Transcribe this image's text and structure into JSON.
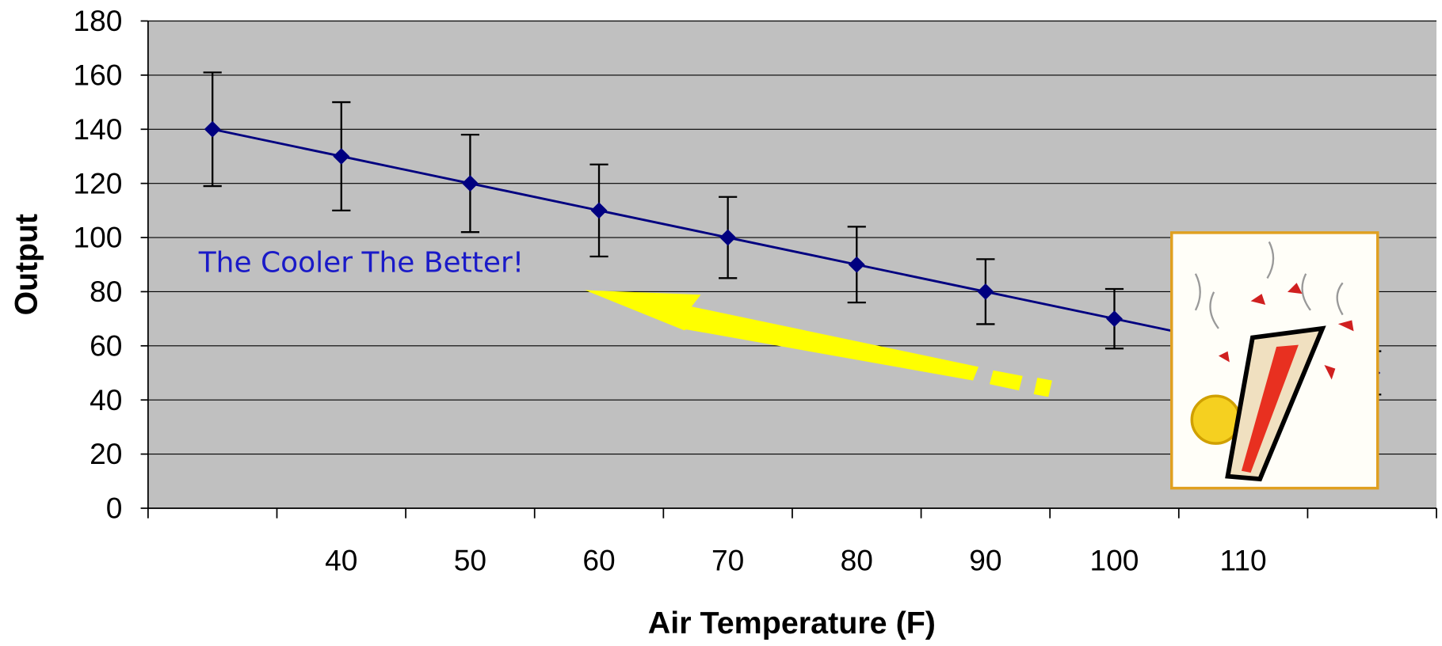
{
  "chart_data": {
    "type": "line",
    "y_label": "Output",
    "x_label": "Air Temperature (F)",
    "annotation": "The Cooler The Better!",
    "categories": [
      null,
      "40",
      "50",
      "60",
      "70",
      "80",
      "90",
      "100",
      "110",
      null
    ],
    "series": [
      {
        "color": "#000080",
        "values": [
          140,
          130,
          120,
          110,
          100,
          90,
          80,
          70,
          60,
          50
        ],
        "errors": [
          21,
          20,
          18,
          17,
          15,
          14,
          12,
          11,
          10,
          8
        ]
      }
    ],
    "ylim": [
      0,
      180
    ],
    "yticks": [
      0,
      20,
      40,
      60,
      80,
      100,
      120,
      140,
      160,
      180
    ],
    "grid": true,
    "plot_background": "#c0c0c0"
  }
}
